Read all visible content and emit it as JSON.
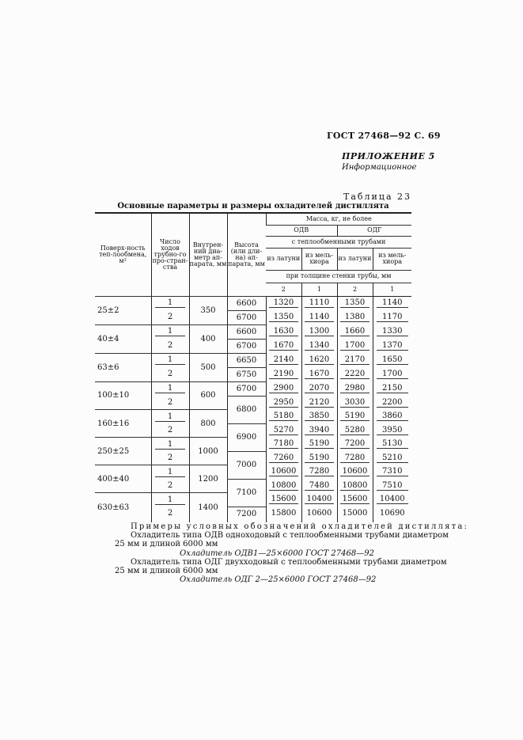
{
  "header": {
    "standard": "ГОСТ 27468—92 С. 69",
    "appendix": "ПРИЛОЖЕНИЕ 5",
    "appendix_type": "Информационное"
  },
  "table": {
    "number": "Таблица 23",
    "title": "Основные параметры и размеры охладителей дистиллята",
    "headers": {
      "surface": "Поверх-ность теп-лообмена, м²",
      "passes": "Число ходов трубно-го про-стран-ства",
      "diameter": "Внутрен-ний диа-метр ап-парата, мм",
      "height": "Высота (или дли-на) ап-парата, мм",
      "mass": "Масса, кг, не более",
      "odv": "ОДВ",
      "odg": "ОДГ",
      "tubes": "с теплообменными трубами",
      "brass": "из латуни",
      "cupronickel": "из мель-хиора",
      "wall": "при толщине стенки трубы, мм",
      "wall_values": [
        "2",
        "1",
        "2",
        "1"
      ]
    },
    "groups": [
      {
        "surface": "25±2",
        "diameter": "350"
      },
      {
        "surface": "40±4",
        "diameter": "400"
      },
      {
        "surface": "63±6",
        "diameter": "500"
      },
      {
        "surface": "100±10",
        "diameter": "600"
      },
      {
        "surface": "160±16",
        "diameter": "800"
      },
      {
        "surface": "250±25",
        "diameter": "1000"
      },
      {
        "surface": "400±40",
        "diameter": "1200"
      },
      {
        "surface": "630±63",
        "diameter": "1400"
      }
    ],
    "heights": [
      {
        "value": "6600",
        "rows": 1
      },
      {
        "value": "6700",
        "rows": 1
      },
      {
        "value": "6600",
        "rows": 1
      },
      {
        "value": "6700",
        "rows": 1
      },
      {
        "value": "6650",
        "rows": 1
      },
      {
        "value": "6750",
        "rows": 1
      },
      {
        "value": "6700",
        "rows": 1
      },
      {
        "value": "6800",
        "rows": 2
      },
      {
        "value": "6900",
        "rows": 2
      },
      {
        "value": "7000",
        "rows": 2
      },
      {
        "value": "7100",
        "rows": 2
      },
      {
        "value": "7200",
        "rows": 1
      }
    ],
    "rows": [
      {
        "passes": "1",
        "mass": [
          "1320",
          "1110",
          "1350",
          "1140"
        ]
      },
      {
        "passes": "2",
        "mass": [
          "1350",
          "1140",
          "1380",
          "1170"
        ]
      },
      {
        "passes": "1",
        "mass": [
          "1630",
          "1300",
          "1660",
          "1330"
        ]
      },
      {
        "passes": "2",
        "mass": [
          "1670",
          "1340",
          "1700",
          "1370"
        ]
      },
      {
        "passes": "1",
        "mass": [
          "2140",
          "1620",
          "2170",
          "1650"
        ]
      },
      {
        "passes": "2",
        "mass": [
          "2190",
          "1670",
          "2220",
          "1700"
        ]
      },
      {
        "passes": "1",
        "mass": [
          "2900",
          "2070",
          "2980",
          "2150"
        ]
      },
      {
        "passes": "2",
        "mass": [
          "2950",
          "2120",
          "3030",
          "2200"
        ]
      },
      {
        "passes": "1",
        "mass": [
          "5180",
          "3850",
          "5190",
          "3860"
        ]
      },
      {
        "passes": "2",
        "mass": [
          "5270",
          "3940",
          "5280",
          "3950"
        ]
      },
      {
        "passes": "1",
        "mass": [
          "7180",
          "5190",
          "7200",
          "5130"
        ]
      },
      {
        "passes": "2",
        "mass": [
          "7260",
          "5190",
          "7280",
          "5210"
        ]
      },
      {
        "passes": "1",
        "mass": [
          "10600",
          "7280",
          "10600",
          "7310"
        ]
      },
      {
        "passes": "2",
        "mass": [
          "10800",
          "7480",
          "10800",
          "7510"
        ]
      },
      {
        "passes": "1",
        "mass": [
          "15600",
          "10400",
          "15600",
          "10400"
        ]
      },
      {
        "passes": "2",
        "mass": [
          "15800",
          "10600",
          "15000",
          "10690"
        ]
      }
    ]
  },
  "notes": {
    "heading": "Примеры условных обозначений охладителей дистиллята:",
    "ex1_line1": "Охладитель типа ОДВ одноходовый с теплообменными трубами диаметром",
    "ex1_line2": "25 мм и длиной 6000 мм",
    "ex1_code": "Охладитель ОДВ1—25×6000 ГОСТ 27468—92",
    "ex2_line1": "Охладитель типа ОДГ двухходовый с теплообменными трубами диаметром",
    "ex2_line2": "25 мм и длиной 6000 мм",
    "ex2_code": "Охладитель ОДГ 2—25×6000 ГОСТ 27468—92"
  }
}
